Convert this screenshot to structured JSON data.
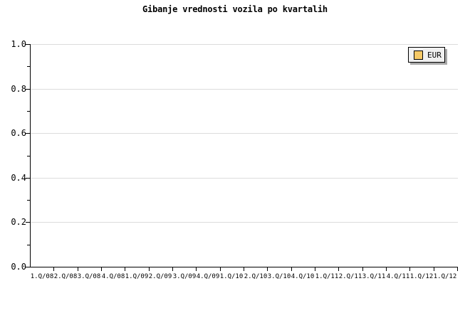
{
  "chart_data": {
    "type": "line",
    "title": "Gibanje vrednosti vozila po kvartalih",
    "xlabel": "",
    "ylabel": "",
    "categories": [
      "1.Q/08",
      "2.Q/08",
      "3.Q/08",
      "4.Q/08",
      "1.Q/09",
      "2.Q/09",
      "3.Q/09",
      "4.Q/09",
      "1.Q/10",
      "2.Q/10",
      "3.Q/10",
      "4.Q/10",
      "1.Q/11",
      "2.Q/11",
      "3.Q/11",
      "4.Q/11",
      "1.Q/12",
      "1.Q/12"
    ],
    "series": [
      {
        "name": "EUR",
        "swatch_color": "#f6c966",
        "values": []
      }
    ],
    "ylim": [
      0.0,
      1.0
    ],
    "y_ticks": [
      0.0,
      0.2,
      0.4,
      0.6,
      0.8,
      1.0
    ],
    "y_tick_labels": [
      "0.0",
      "0.2",
      "0.4",
      "0.6",
      "0.8",
      "1.0"
    ],
    "y_minor_ticks": [
      0.1,
      0.3,
      0.5,
      0.7,
      0.9
    ],
    "grid": "horizontal major gridlines on",
    "legend_position": "top-right",
    "colors": {
      "background": "#ffffff",
      "axis": "#000000",
      "gridline": "#dcdcdc",
      "legend_bg": "#f0f0f0",
      "legend_border": "#000000",
      "legend_shadow": "#a8a8a8",
      "swatch": "#f6c966",
      "text": "#000000"
    }
  }
}
